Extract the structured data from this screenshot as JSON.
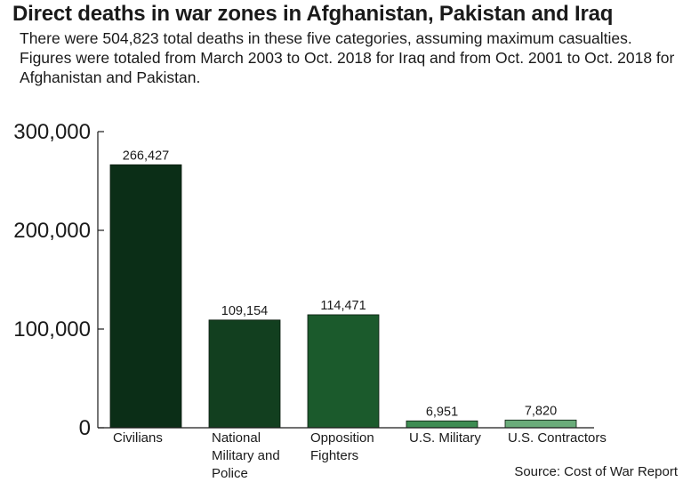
{
  "title": "Direct deaths in war zones in Afghanistan, Pakistan and Iraq",
  "subtitle": "There were 504,823 total deaths in these five categories, assuming maximum casualties. Figures were totaled from March 2003 to Oct. 2018 for Iraq and from Oct. 2001 to Oct. 2018 for Afghanistan and Pakistan.",
  "source": "Source: Cost of War Report",
  "chart_data": {
    "type": "bar",
    "title": "Direct deaths in war zones in Afghanistan, Pakistan and Iraq",
    "xlabel": "",
    "ylabel": "",
    "ylim": [
      0,
      300000
    ],
    "grid": false,
    "yticks": [
      {
        "value": 0,
        "label": "0"
      },
      {
        "value": 100000,
        "label": "100,000"
      },
      {
        "value": 200000,
        "label": "200,000"
      },
      {
        "value": 300000,
        "label": "300,000"
      }
    ],
    "categories": [
      [
        "Civilians"
      ],
      [
        "National",
        "Military and",
        "Police"
      ],
      [
        "Opposition",
        "Fighters"
      ],
      [
        "U.S. Military"
      ],
      [
        "U.S. Contractors"
      ]
    ],
    "values": [
      266427,
      109154,
      114471,
      6951,
      7820
    ],
    "value_labels": [
      "266,427",
      "109,154",
      "114,471",
      "6,951",
      "7,820"
    ],
    "colors": [
      "#0b2e17",
      "#123f1f",
      "#1b5a2c",
      "#3d8c52",
      "#6aac7a"
    ],
    "axis_color": "#1a1a1a"
  }
}
